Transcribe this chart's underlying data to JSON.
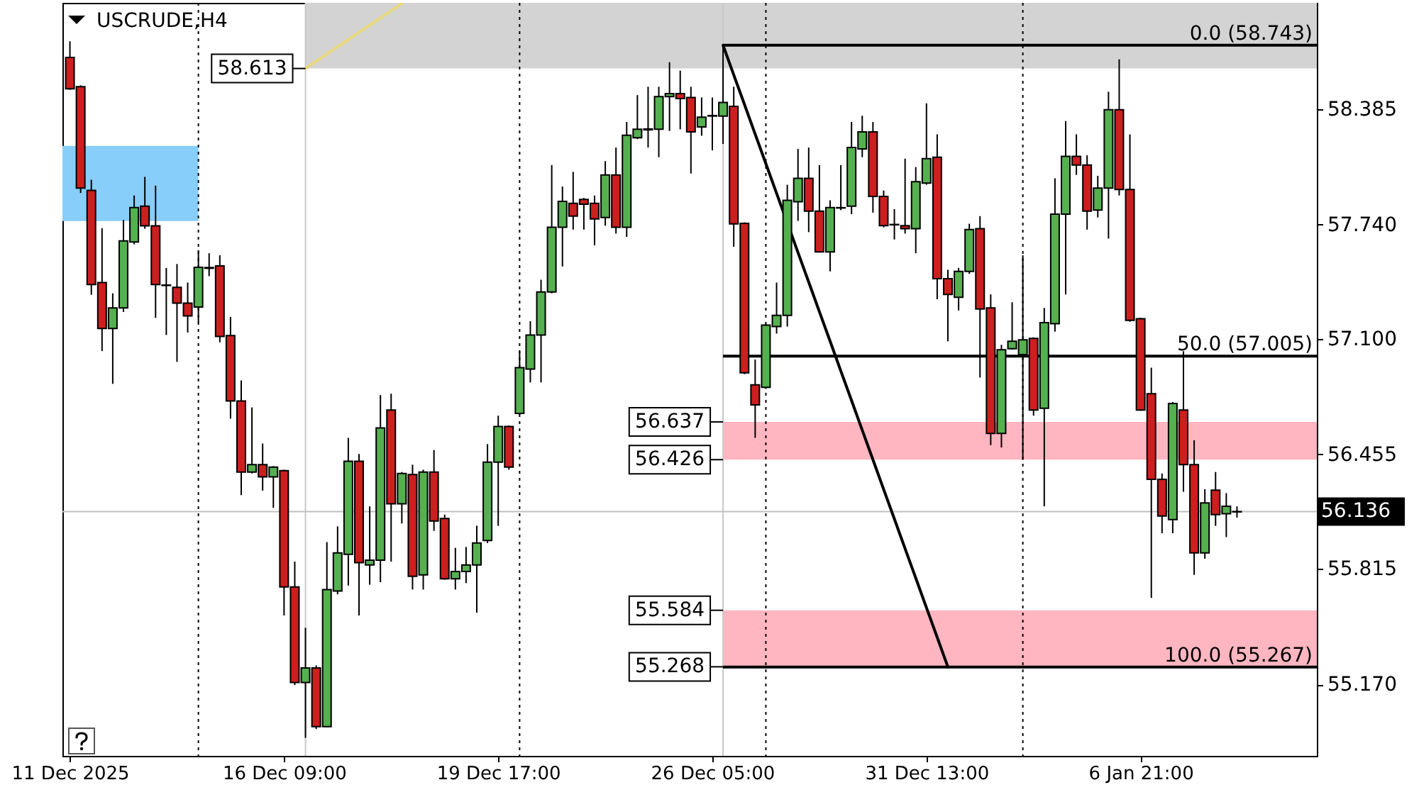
{
  "chart_data": {
    "type": "candlestick",
    "title": "USCRUDE,H4",
    "grid": "x",
    "categories": [
      "11 Dec 2025",
      null,
      null,
      null,
      null,
      null,
      null,
      null,
      null,
      null,
      null,
      null,
      null,
      null,
      null,
      null,
      null,
      null,
      null,
      null,
      "16 Dec 09:00",
      null,
      null,
      null,
      null,
      null,
      null,
      null,
      null,
      null,
      null,
      null,
      null,
      null,
      null,
      null,
      null,
      null,
      null,
      null,
      "19 Dec 17:00",
      null,
      null,
      null,
      null,
      null,
      null,
      null,
      null,
      null,
      null,
      null,
      null,
      null,
      null,
      null,
      null,
      null,
      null,
      null,
      "26 Dec 05:00",
      null,
      null,
      null,
      null,
      null,
      null,
      null,
      null,
      null,
      null,
      null,
      null,
      null,
      null,
      null,
      null,
      null,
      null,
      null,
      "31 Dec 13:00",
      null,
      null,
      null,
      null,
      null,
      null,
      null,
      null,
      null,
      null,
      null,
      null,
      null,
      null,
      null,
      null,
      null,
      null,
      null,
      "6 Jan 21:00",
      null,
      null,
      null,
      null,
      null,
      null,
      null,
      null,
      null
    ],
    "ohlc": [
      [
        58.675,
        58.765,
        58.494,
        58.499
      ],
      [
        58.511,
        58.519,
        57.917,
        57.944
      ],
      [
        57.931,
        57.991,
        57.348,
        57.405
      ],
      [
        57.416,
        57.72,
        57.033,
        57.159
      ],
      [
        57.159,
        57.356,
        56.85,
        57.274
      ],
      [
        57.274,
        57.766,
        57.252,
        57.649
      ],
      [
        57.643,
        57.903,
        57.63,
        57.835
      ],
      [
        57.843,
        58.007,
        57.717,
        57.733
      ],
      [
        57.733,
        57.958,
        57.219,
        57.405
      ],
      [
        57.402,
        57.498,
        57.123,
        57.4
      ],
      [
        57.389,
        57.52,
        56.973,
        57.301
      ],
      [
        57.301,
        57.416,
        57.137,
        57.23
      ],
      [
        57.279,
        57.597,
        57.192,
        57.501
      ],
      [
        57.496,
        57.58,
        57.452,
        57.5
      ],
      [
        57.509,
        57.569,
        57.082,
        57.115
      ],
      [
        57.12,
        57.224,
        56.655,
        56.754
      ],
      [
        56.754,
        56.869,
        56.228,
        56.357
      ],
      [
        56.357,
        56.718,
        56.349,
        56.398
      ],
      [
        56.398,
        56.516,
        56.253,
        56.33
      ],
      [
        56.33,
        56.39,
        56.157,
        56.384
      ],
      [
        56.365,
        56.37,
        55.555,
        55.714
      ],
      [
        55.714,
        55.856,
        55.166,
        55.18
      ],
      [
        55.18,
        55.486,
        54.871,
        55.262
      ],
      [
        55.262,
        55.276,
        54.92,
        54.934
      ],
      [
        54.934,
        55.965,
        54.93,
        55.7
      ],
      [
        55.692,
        56.053,
        55.673,
        55.905
      ],
      [
        55.897,
        56.548,
        55.722,
        56.417
      ],
      [
        56.417,
        56.458,
        55.555,
        55.85
      ],
      [
        55.837,
        56.165,
        55.727,
        55.864
      ],
      [
        55.864,
        56.787,
        55.741,
        56.603
      ],
      [
        56.704,
        56.795,
        55.856,
        56.179
      ],
      [
        56.179,
        56.357,
        56.069,
        56.349
      ],
      [
        56.343,
        56.398,
        55.7,
        55.774
      ],
      [
        55.782,
        56.37,
        55.7,
        56.357
      ],
      [
        56.357,
        56.48,
        56.028,
        56.083
      ],
      [
        56.097,
        56.119,
        55.755,
        55.76
      ],
      [
        55.76,
        55.933,
        55.7,
        55.801
      ],
      [
        55.801,
        55.938,
        55.736,
        55.837
      ],
      [
        55.837,
        56.056,
        55.571,
        55.96
      ],
      [
        55.974,
        56.513,
        55.96,
        56.412
      ],
      [
        56.412,
        56.672,
        56.056,
        56.611
      ],
      [
        56.611,
        56.617,
        56.37,
        56.384
      ],
      [
        56.685,
        57.033,
        56.677,
        56.94
      ],
      [
        56.932,
        57.2,
        56.858,
        57.123
      ],
      [
        57.123,
        57.432,
        56.858,
        57.364
      ],
      [
        57.364,
        58.073,
        57.356,
        57.725
      ],
      [
        57.725,
        57.953,
        57.506,
        57.87
      ],
      [
        57.859,
        58.035,
        57.712,
        57.788
      ],
      [
        57.881,
        57.889,
        57.712,
        57.854
      ],
      [
        57.859,
        57.903,
        57.624,
        57.772
      ],
      [
        57.78,
        58.095,
        57.734,
        58.018
      ],
      [
        58.018,
        58.171,
        57.69,
        57.725
      ],
      [
        57.725,
        58.314,
        57.671,
        58.24
      ],
      [
        58.226,
        58.464,
        58.218,
        58.273
      ],
      [
        58.27,
        58.511,
        58.171,
        58.275
      ],
      [
        58.273,
        58.511,
        58.117,
        58.456
      ],
      [
        58.456,
        58.648,
        58.264,
        58.473
      ],
      [
        58.473,
        58.601,
        58.273,
        58.445
      ],
      [
        58.451,
        58.511,
        58.026,
        58.259
      ],
      [
        58.286,
        58.451,
        58.237,
        58.341
      ],
      [
        58.347,
        58.451,
        58.155,
        58.35
      ],
      [
        58.347,
        58.743,
        58.191,
        58.423
      ],
      [
        58.401,
        58.511,
        57.616,
        57.744
      ],
      [
        57.747,
        57.753,
        56.904,
        56.912
      ],
      [
        56.844,
        56.986,
        56.548,
        56.732
      ],
      [
        56.83,
        57.186,
        56.822,
        57.178
      ],
      [
        57.17,
        57.416,
        57.131,
        57.233
      ],
      [
        57.233,
        57.963,
        57.17,
        57.876
      ],
      [
        57.868,
        58.163,
        57.761,
        57.999
      ],
      [
        57.999,
        58.171,
        57.698,
        57.816
      ],
      [
        57.816,
        58.073,
        57.588,
        57.588
      ],
      [
        57.588,
        57.876,
        57.479,
        57.835
      ],
      [
        57.833,
        58.073,
        57.821,
        57.835
      ],
      [
        57.843,
        58.314,
        57.799,
        58.171
      ],
      [
        58.163,
        58.349,
        58.117,
        58.259
      ],
      [
        58.259,
        58.314,
        57.807,
        57.898
      ],
      [
        57.898,
        57.931,
        57.725,
        57.734
      ],
      [
        57.741,
        57.827,
        57.657,
        57.739
      ],
      [
        57.734,
        58.109,
        57.69,
        57.717
      ],
      [
        57.717,
        58.062,
        57.58,
        57.98
      ],
      [
        57.972,
        58.418,
        57.963,
        58.109
      ],
      [
        58.117,
        58.245,
        57.323,
        57.438
      ],
      [
        57.438,
        57.487,
        57.088,
        57.35
      ],
      [
        57.334,
        57.498,
        57.26,
        57.479
      ],
      [
        57.479,
        57.745,
        57.465,
        57.712
      ],
      [
        57.717,
        57.788,
        56.885,
        57.268
      ],
      [
        57.274,
        57.35,
        56.507,
        56.573
      ],
      [
        56.573,
        57.068,
        56.494,
        57.041
      ],
      [
        57.046,
        57.306,
        57.041,
        57.088
      ],
      [
        57.014,
        57.569,
        56.425,
        57.096
      ],
      [
        57.104,
        57.11,
        56.672,
        56.704
      ],
      [
        56.713,
        57.274,
        56.165,
        57.192
      ],
      [
        57.186,
        57.999,
        57.142,
        57.799
      ],
      [
        57.799,
        58.319,
        57.35,
        58.122
      ],
      [
        58.122,
        58.245,
        58.018,
        58.073
      ],
      [
        58.073,
        58.128,
        57.712,
        57.816
      ],
      [
        57.821,
        58.013,
        57.78,
        57.944
      ],
      [
        57.944,
        58.483,
        57.662,
        58.382
      ],
      [
        58.382,
        58.664,
        57.903,
        57.936
      ],
      [
        57.936,
        58.245,
        57.197,
        57.205
      ],
      [
        57.214,
        57.219,
        56.699,
        56.704
      ],
      [
        56.795,
        56.94,
        55.653,
        56.316
      ],
      [
        56.316,
        56.349,
        56.015,
        56.111
      ],
      [
        56.091,
        56.748,
        56.015,
        56.74
      ],
      [
        56.704,
        57.033,
        56.247,
        56.398
      ],
      [
        56.398,
        56.535,
        55.782,
        55.905
      ],
      [
        55.905,
        56.261,
        55.872,
        56.184
      ],
      [
        56.256,
        56.357,
        56.056,
        56.119
      ],
      [
        56.124,
        56.239,
        55.993,
        56.165
      ],
      [
        56.134,
        56.165,
        56.102,
        56.136
      ]
    ],
    "colors": [
      "#cc1f1f",
      "#cc1f1f",
      "#cc1f1f",
      "#cc1f1f",
      "#55b050",
      "#55b050",
      "#55b050",
      "#cc1f1f",
      "#cc1f1f",
      "#cc1f1f",
      "#cc1f1f",
      "#cc1f1f",
      "#55b050",
      "#55b050",
      "#cc1f1f",
      "#cc1f1f",
      "#cc1f1f",
      "#55b050",
      "#cc1f1f",
      "#55b050",
      "#cc1f1f",
      "#cc1f1f",
      "#55b050",
      "#cc1f1f",
      "#55b050",
      "#55b050",
      "#55b050",
      "#cc1f1f",
      "#55b050",
      "#55b050",
      "#cc1f1f",
      "#55b050",
      "#cc1f1f",
      "#55b050",
      "#cc1f1f",
      "#cc1f1f",
      "#55b050",
      "#55b050",
      "#55b050",
      "#55b050",
      "#55b050",
      "#cc1f1f",
      "#55b050",
      "#55b050",
      "#55b050",
      "#55b050",
      "#55b050",
      "#cc1f1f",
      "#cc1f1f",
      "#cc1f1f",
      "#55b050",
      "#cc1f1f",
      "#55b050",
      "#55b050",
      "#55b050",
      "#55b050",
      "#55b050",
      "#cc1f1f",
      "#cc1f1f",
      "#55b050",
      "#55b050",
      "#55b050",
      "#cc1f1f",
      "#cc1f1f",
      "#cc1f1f",
      "#55b050",
      "#55b050",
      "#55b050",
      "#55b050",
      "#cc1f1f",
      "#cc1f1f",
      "#55b050",
      "#55b050",
      "#55b050",
      "#55b050",
      "#cc1f1f",
      "#cc1f1f",
      "#cc1f1f",
      "#cc1f1f",
      "#55b050",
      "#55b050",
      "#cc1f1f",
      "#cc1f1f",
      "#55b050",
      "#55b050",
      "#cc1f1f",
      "#cc1f1f",
      "#55b050",
      "#55b050",
      "#55b050",
      "#cc1f1f",
      "#55b050",
      "#55b050",
      "#55b050",
      "#cc1f1f",
      "#cc1f1f",
      "#55b050",
      "#55b050",
      "#cc1f1f",
      "#cc1f1f",
      "#cc1f1f",
      "#cc1f1f",
      "#cc1f1f",
      "#55b050",
      "#cc1f1f",
      "#cc1f1f",
      "#55b050",
      "#cc1f1f",
      "#55b050",
      "#55b050"
    ],
    "ylim": [
      54.77,
      58.98
    ],
    "yticks": [
      {
        "value": 55.17,
        "label": "55.170"
      },
      55.815,
      56.455,
      {
        "value": 57.1,
        "label": "57.100"
      },
      {
        "value": 57.74,
        "label": "57.740"
      },
      58.385
    ],
    "series": [
      {
        "type": "line",
        "color": "#000000",
        "values": [
          null,
          null,
          null,
          null,
          null,
          null,
          null,
          null,
          null,
          null,
          null,
          null,
          null,
          null,
          null,
          null,
          null,
          null,
          null,
          null,
          null,
          null,
          null,
          null,
          null,
          null,
          null,
          null,
          null,
          null,
          null,
          null,
          null,
          null,
          null,
          null,
          null,
          null,
          null,
          null,
          null,
          null,
          null,
          null,
          null,
          null,
          null,
          null,
          null,
          null,
          null,
          null,
          null,
          null,
          null,
          null,
          null,
          null,
          null,
          null,
          null,
          58.743,
          58.577,
          58.412,
          58.246,
          58.081,
          57.915,
          57.75,
          57.584,
          57.419,
          57.253,
          57.088,
          56.922,
          56.757,
          56.591,
          56.426,
          56.26,
          56.095,
          55.929,
          55.764,
          55.598,
          55.433,
          55.267,
          null,
          null,
          null,
          null,
          null,
          null,
          null,
          null,
          null,
          null,
          null,
          null,
          null,
          null,
          null,
          null,
          null,
          null,
          null,
          null,
          null,
          null,
          null,
          null,
          null,
          null,
          null
        ]
      },
      {
        "type": "line",
        "color": "#e8d87c",
        "values": [
          null,
          null,
          null,
          null,
          null,
          null,
          null,
          null,
          null,
          null,
          null,
          null,
          null,
          null,
          null,
          null,
          null,
          null,
          null,
          null,
          null,
          null,
          58.613,
          58.653,
          58.694,
          58.734,
          58.774,
          58.815,
          58.855,
          58.895,
          58.936,
          58.976,
          null,
          null,
          null,
          null,
          null,
          null,
          null,
          null,
          null,
          null,
          null,
          null,
          null,
          null,
          null,
          null,
          null,
          null,
          null,
          null,
          null,
          null,
          null,
          null,
          null,
          null,
          null,
          null,
          null,
          null,
          null,
          null,
          null,
          null,
          null,
          null,
          null,
          null,
          null,
          null,
          null,
          null,
          null,
          null,
          null,
          null,
          null,
          null,
          null,
          null,
          null,
          null,
          null,
          null,
          null,
          null,
          null,
          null,
          null,
          null,
          null,
          null,
          null,
          null,
          null,
          null,
          null,
          null,
          null,
          null,
          null,
          null,
          null,
          null,
          null,
          null,
          null,
          null
        ]
      }
    ],
    "ref_lines": [
      {
        "axis": "y",
        "value": 58.743,
        "label": "0.0 (58.743)",
        "color": "#000000"
      },
      {
        "axis": "y",
        "value": 57.005,
        "label": "50.0 (57.005)",
        "color": "#000000"
      },
      {
        "axis": "y",
        "value": 55.267,
        "label": "100.0 (55.267)",
        "color": "#000000"
      },
      {
        "axis": "y",
        "value": 56.136,
        "label": "56.136",
        "color": "#c0c0c0"
      }
    ],
    "bands": [
      {
        "axis": "y",
        "from": 57.76,
        "to": 58.18,
        "color": "#87cefa"
      },
      {
        "axis": "y",
        "from": 58.613,
        "to": 58.98,
        "color": "#d3d3d3"
      },
      {
        "axis": "y",
        "from": 56.426,
        "to": 56.637,
        "color": "#ffb6c1"
      },
      {
        "axis": "y",
        "from": 55.268,
        "to": 55.584,
        "color": "#ffb6c1"
      }
    ],
    "annotations": [
      "58.613",
      "56.637",
      "56.426",
      "55.584",
      "55.268"
    ]
  }
}
